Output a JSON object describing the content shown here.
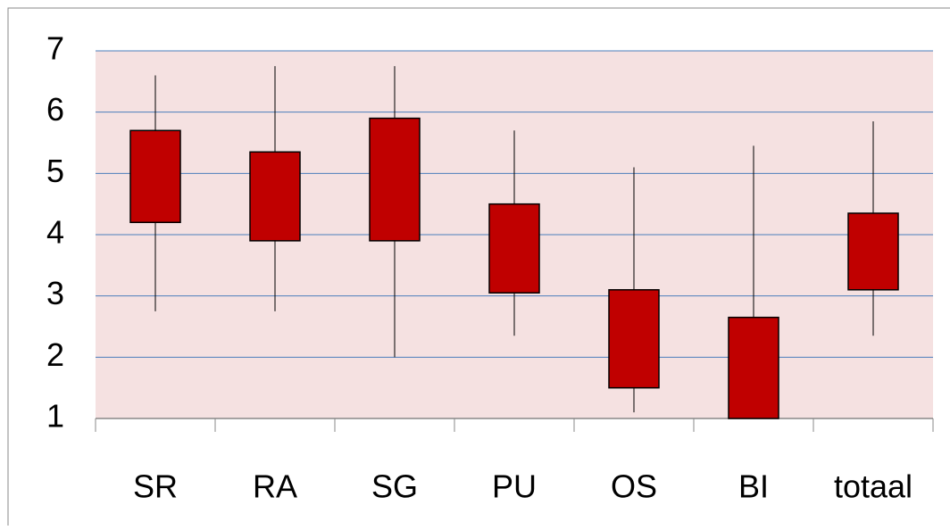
{
  "chart_data": {
    "type": "candlestick",
    "categories": [
      "SR",
      "RA",
      "SG",
      "PU",
      "OS",
      "BI",
      "totaal"
    ],
    "high": [
      6.6,
      6.75,
      6.75,
      5.7,
      5.1,
      5.45,
      5.85
    ],
    "close": [
      5.7,
      5.35,
      5.9,
      4.5,
      3.1,
      2.65,
      4.35
    ],
    "open": [
      4.2,
      3.9,
      3.9,
      3.05,
      1.5,
      1.0,
      3.1
    ],
    "low": [
      2.75,
      2.75,
      2.0,
      2.35,
      1.1,
      1.0,
      2.35
    ],
    "color": "#c00000",
    "ylim": [
      1,
      7
    ],
    "yticks": [
      1,
      2,
      3,
      4,
      5,
      6,
      7
    ],
    "grid": true
  }
}
